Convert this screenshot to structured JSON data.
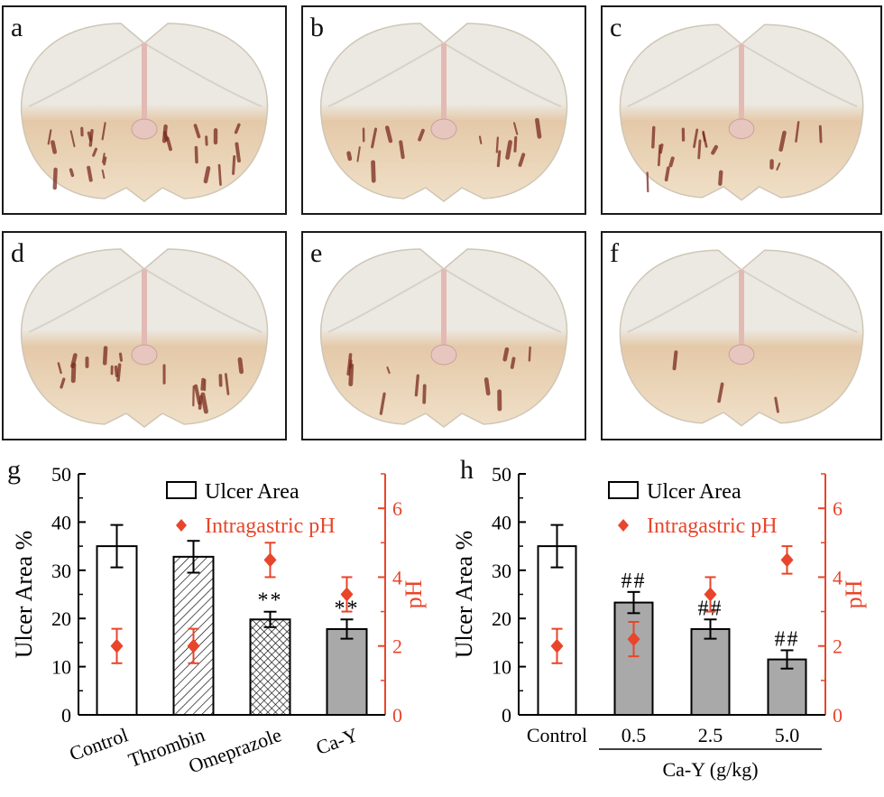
{
  "photo_panels": [
    {
      "id": "a",
      "label": "a"
    },
    {
      "id": "b",
      "label": "b"
    },
    {
      "id": "c",
      "label": "c"
    },
    {
      "id": "d",
      "label": "d"
    },
    {
      "id": "e",
      "label": "e"
    },
    {
      "id": "f",
      "label": "f"
    }
  ],
  "colors": {
    "bar_outline": "#000000",
    "bar_gray": "#a9a9a9",
    "ph_red": "#e8452a",
    "tissue_pale": "#ece9e2",
    "tissue_lower": "#e4c9a8",
    "lesion": "#7a2a1e"
  },
  "chart_data": [
    {
      "panel_label": "g",
      "type": "bar",
      "categories": [
        "Control",
        "Thrombin",
        "Omeprazole",
        "Ca-Y"
      ],
      "ylabel": "Ulcer Area %",
      "y2label": "pH",
      "ylim": [
        0,
        50
      ],
      "y2lim": [
        0,
        7
      ],
      "yticks": [
        0,
        10,
        20,
        30,
        40,
        50
      ],
      "y2ticks": [
        0,
        2,
        4,
        6
      ],
      "legend": {
        "bar": "Ulcer Area",
        "point": "Intragastric pH"
      },
      "series": [
        {
          "name": "Ulcer Area",
          "kind": "bar",
          "values": [
            35.0,
            32.8,
            19.8,
            17.8
          ],
          "errors": [
            4.4,
            3.3,
            1.6,
            2.0
          ],
          "fills": [
            "white",
            "hatch",
            "crosshatch",
            "gray"
          ]
        },
        {
          "name": "Intragastric pH",
          "kind": "point",
          "axis": "right",
          "values": [
            2.0,
            2.0,
            4.5,
            3.5
          ],
          "errors": [
            0.5,
            0.5,
            0.5,
            0.5
          ]
        }
      ],
      "annotations": [
        "",
        "",
        "**",
        "**"
      ]
    },
    {
      "panel_label": "h",
      "type": "bar",
      "categories": [
        "Control",
        "0.5",
        "2.5",
        "5.0"
      ],
      "group_label": "Ca-Y (g/kg)",
      "ylabel": "Ulcer Area %",
      "y2label": "pH",
      "ylim": [
        0,
        50
      ],
      "y2lim": [
        0,
        7
      ],
      "yticks": [
        0,
        10,
        20,
        30,
        40,
        50
      ],
      "y2ticks": [
        0,
        2,
        4,
        6
      ],
      "legend": {
        "bar": "Ulcer Area",
        "point": "Intragastric pH"
      },
      "series": [
        {
          "name": "Ulcer Area",
          "kind": "bar",
          "values": [
            35.0,
            23.3,
            17.8,
            11.5
          ],
          "errors": [
            4.4,
            2.2,
            2.0,
            1.9
          ],
          "fills": [
            "white",
            "gray",
            "gray",
            "gray"
          ]
        },
        {
          "name": "Intragastric pH",
          "kind": "point",
          "axis": "right",
          "values": [
            2.0,
            2.2,
            3.5,
            4.5
          ],
          "errors": [
            0.5,
            0.5,
            0.5,
            0.4
          ]
        }
      ],
      "annotations": [
        "",
        "##",
        "##",
        "##"
      ]
    }
  ]
}
